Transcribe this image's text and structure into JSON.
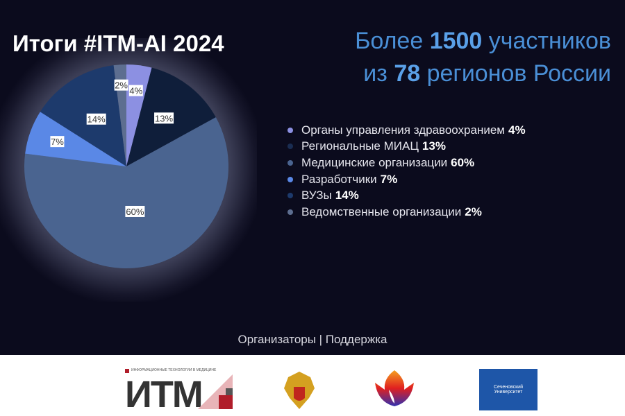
{
  "title": "Итоги #ITM-AI 2024",
  "headline": {
    "line1_pre": "Более",
    "line1_num": "1500",
    "line1_post": "участников",
    "line2_pre": "из",
    "line2_num": "78",
    "line2_post": "регионов России"
  },
  "chart_data": {
    "type": "pie",
    "start": "top",
    "direction": "clockwise",
    "slices": [
      {
        "name": "Органы управления здравоохранием",
        "value": 4,
        "label": "4%",
        "color": "#8c90e2"
      },
      {
        "name": "Региональные МИАЦ",
        "value": 13,
        "label": "13%",
        "color": "#0f1e3a"
      },
      {
        "name": "Медицинские организации",
        "value": 60,
        "label": "60%",
        "color": "#4a6490"
      },
      {
        "name": "Разработчики",
        "value": 7,
        "label": "7%",
        "color": "#5a88e6"
      },
      {
        "name": "ВУЗы",
        "value": 14,
        "label": "14%",
        "color": "#1d3a6c"
      },
      {
        "name": "Ведомственные организации",
        "value": 2,
        "label": "2%",
        "color": "#5d6e90"
      }
    ],
    "legend_placement": "right"
  },
  "footer": {
    "label": "Организаторы | Поддержка",
    "logo_itm": "ИТМ",
    "logo_itm_caption": "ИНФОРМАЦИОННЫЕ ТЕХНОЛОГИИ В МЕДИЦИНЕ",
    "logo_university": "Сеченовский Университет"
  }
}
